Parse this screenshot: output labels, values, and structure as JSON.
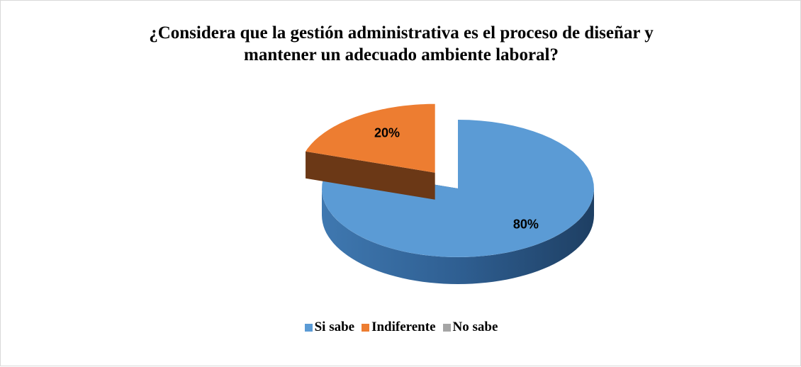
{
  "chart_data": {
    "type": "pie",
    "title": "¿Considera que la gestión administrativa es el proceso de diseñar y mantener un adecuado ambiente laboral?",
    "categories": [
      "Si sabe",
      "Indiferente",
      "No sabe"
    ],
    "values": [
      80,
      20,
      0
    ],
    "value_labels": [
      "80%",
      "20%",
      null
    ],
    "colors": [
      "#5b9bd5",
      "#ed7d31",
      "#a5a5a5"
    ],
    "legend": "bottom"
  }
}
